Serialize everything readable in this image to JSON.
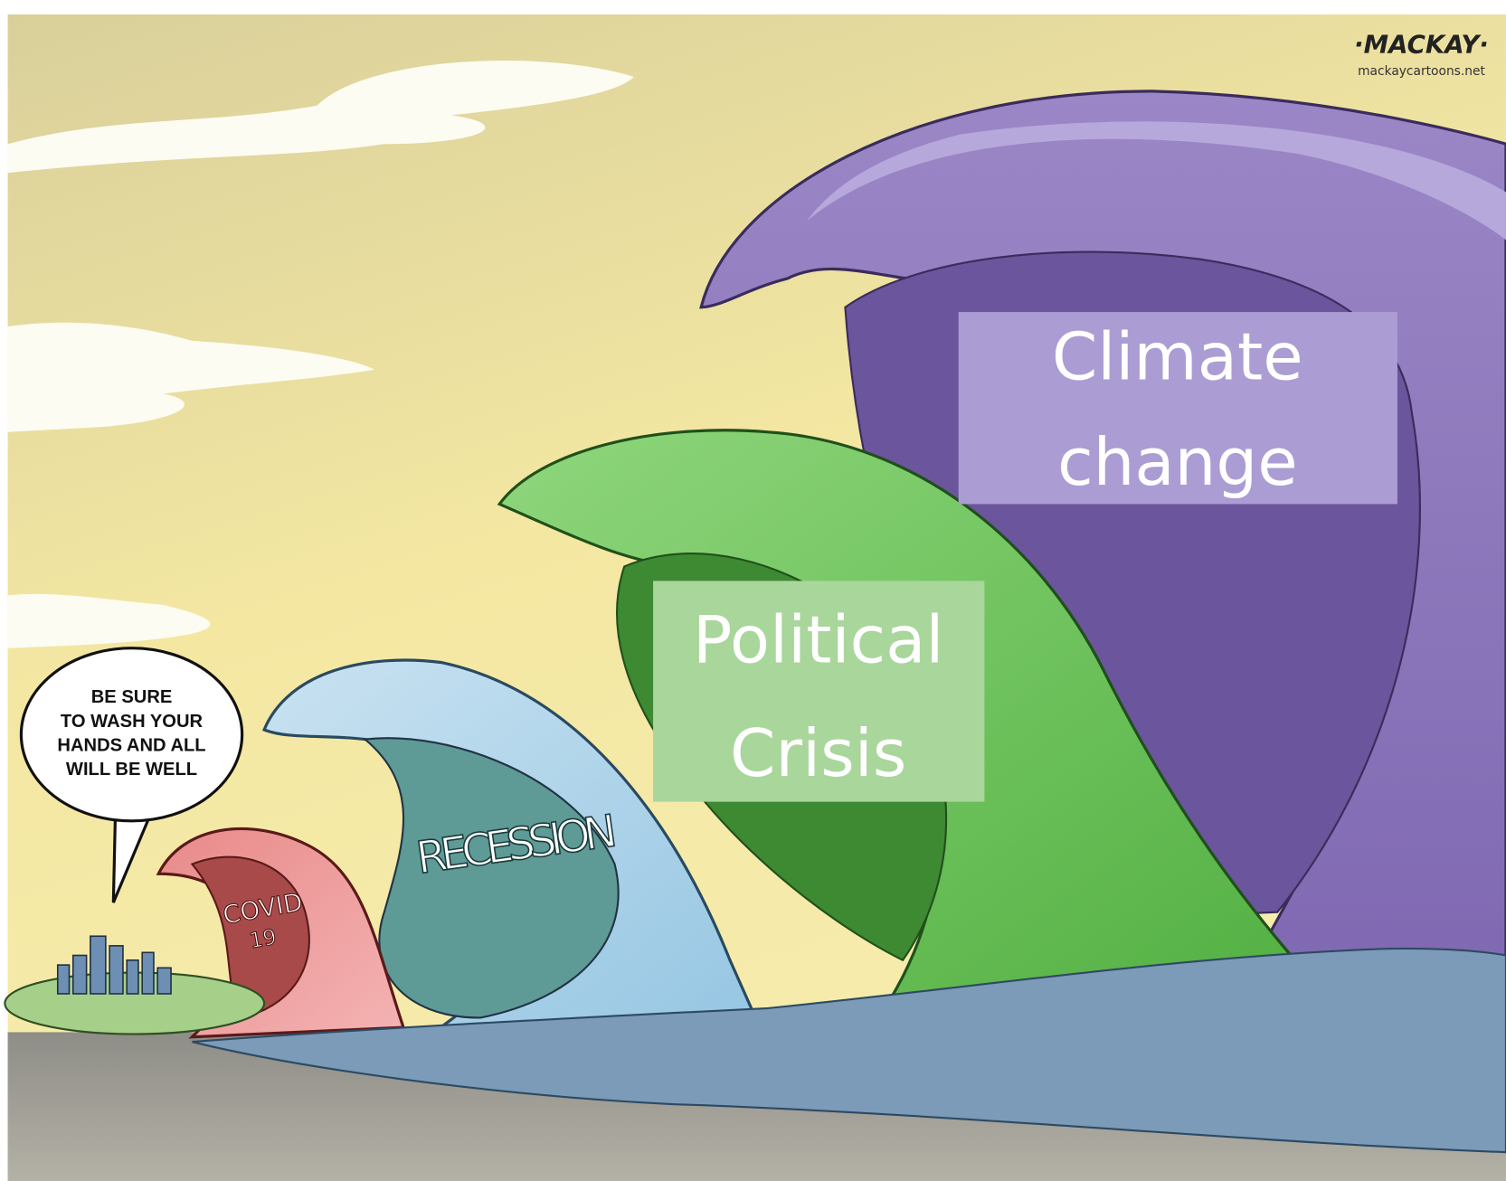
{
  "signature": {
    "name": "·MACKAY·",
    "url": "mackaycartoons.net"
  },
  "labels": {
    "climate": [
      "Climate",
      "change"
    ],
    "political": [
      "Political",
      "Crisis"
    ],
    "recession": "RECESSION",
    "covid": [
      "COVID",
      "19"
    ]
  },
  "speech_bubble": [
    "BE SURE",
    "TO WASH YOUR",
    "HANDS AND ALL",
    "WILL BE WELL"
  ]
}
